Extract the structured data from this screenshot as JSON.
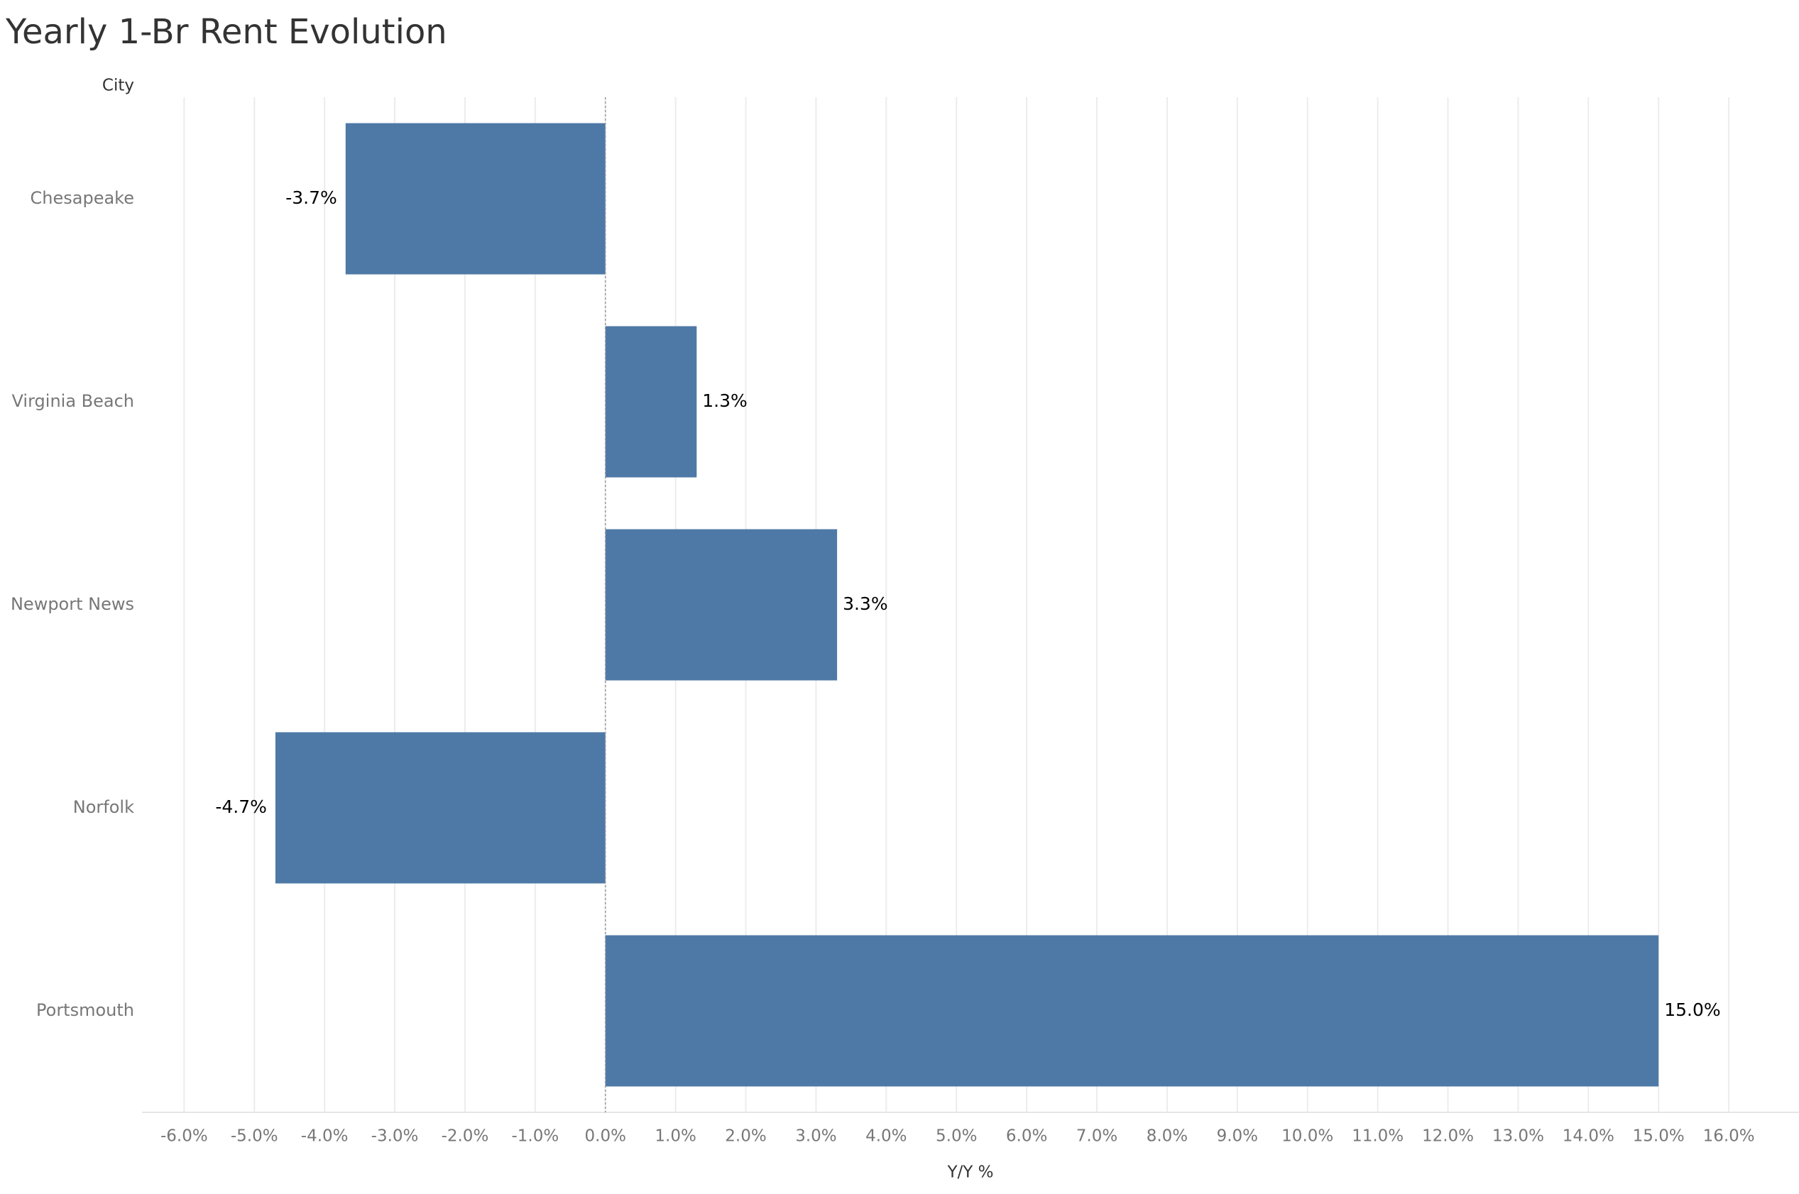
{
  "chart_data": {
    "type": "hbar",
    "title": "Yearly 1-Br Rent Evolution",
    "y_axis_label": "City",
    "x_axis_label": "Y/Y %",
    "categories": [
      "Chesapeake",
      "Virginia Beach",
      "Newport News",
      "Norfolk",
      "Portsmouth"
    ],
    "values": [
      -3.7,
      1.3,
      3.3,
      -4.7,
      15.0
    ],
    "value_labels": [
      "-3.7%",
      "1.3%",
      "3.3%",
      "-4.7%",
      "15.0%"
    ],
    "color": "#4e79a7",
    "xlim": [
      -6.6,
      17.0
    ],
    "xticks": [
      {
        "value": -6,
        "label": "-6.0%"
      },
      {
        "value": -5,
        "label": "-5.0%"
      },
      {
        "value": -4,
        "label": "-4.0%"
      },
      {
        "value": -3,
        "label": "-3.0%"
      },
      {
        "value": -2,
        "label": "-2.0%"
      },
      {
        "value": -1,
        "label": "-1.0%"
      },
      {
        "value": 0,
        "label": "0.0%"
      },
      {
        "value": 1,
        "label": "1.0%"
      },
      {
        "value": 2,
        "label": "2.0%"
      },
      {
        "value": 3,
        "label": "3.0%"
      },
      {
        "value": 4,
        "label": "4.0%"
      },
      {
        "value": 5,
        "label": "5.0%"
      },
      {
        "value": 6,
        "label": "6.0%"
      },
      {
        "value": 7,
        "label": "7.0%"
      },
      {
        "value": 8,
        "label": "8.0%"
      },
      {
        "value": 9,
        "label": "9.0%"
      },
      {
        "value": 10,
        "label": "10.0%"
      },
      {
        "value": 11,
        "label": "11.0%"
      },
      {
        "value": 12,
        "label": "12.0%"
      },
      {
        "value": 13,
        "label": "13.0%"
      },
      {
        "value": 14,
        "label": "14.0%"
      },
      {
        "value": 15,
        "label": "15.0%"
      },
      {
        "value": 16,
        "label": "16.0%"
      }
    ],
    "grid": true
  }
}
